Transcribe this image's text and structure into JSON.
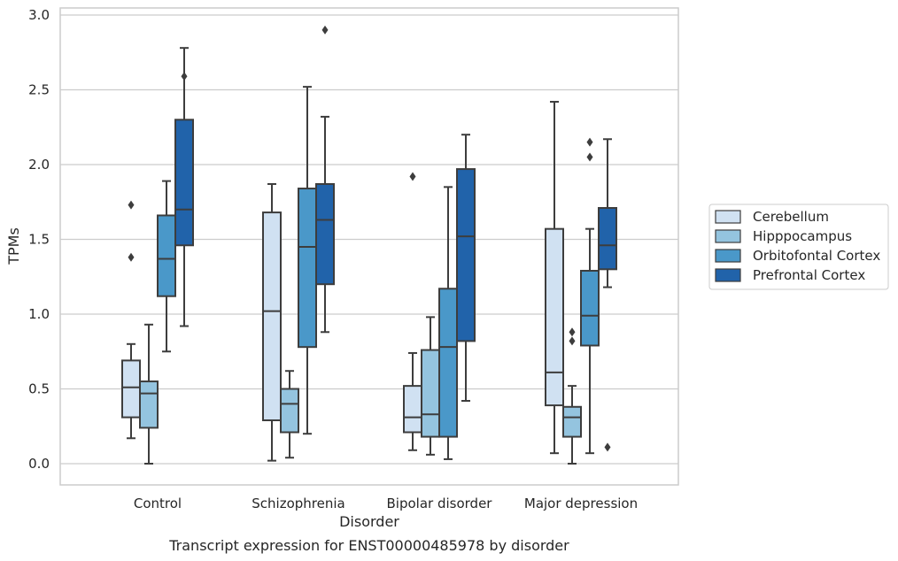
{
  "chart_data": {
    "type": "boxplot",
    "xlabel": "Disorder",
    "ylabel": "TPMs",
    "caption": "Transcript expression for ENST00000485978 by disorder",
    "ylim": [
      -0.14,
      3.05
    ],
    "yticks": [
      "0.0",
      "0.5",
      "1.0",
      "1.5",
      "2.0",
      "2.5",
      "3.0"
    ],
    "grid": "horizontal",
    "legend_position": "right",
    "categories": [
      "Control",
      "Schizophrenia",
      "Bipolar disorder",
      "Major depression"
    ],
    "series": [
      {
        "name": "Cerebellum",
        "color": "#d0e1f2",
        "boxes": [
          {
            "whislo": 0.17,
            "q1": 0.31,
            "med": 0.51,
            "q3": 0.69,
            "whishi": 0.8,
            "fliers": [
              1.38,
              1.73
            ]
          },
          {
            "whislo": 0.02,
            "q1": 0.29,
            "med": 1.02,
            "q3": 1.68,
            "whishi": 1.87,
            "fliers": []
          },
          {
            "whislo": 0.09,
            "q1": 0.21,
            "med": 0.31,
            "q3": 0.52,
            "whishi": 0.74,
            "fliers": [
              1.92
            ]
          },
          {
            "whislo": 0.07,
            "q1": 0.39,
            "med": 0.61,
            "q3": 1.57,
            "whishi": 2.42,
            "fliers": []
          }
        ]
      },
      {
        "name": "Hipppocampus",
        "color": "#94c4df",
        "boxes": [
          {
            "whislo": 0.0,
            "q1": 0.24,
            "med": 0.47,
            "q3": 0.55,
            "whishi": 0.93,
            "fliers": []
          },
          {
            "whislo": 0.04,
            "q1": 0.21,
            "med": 0.4,
            "q3": 0.5,
            "whishi": 0.62,
            "fliers": []
          },
          {
            "whislo": 0.06,
            "q1": 0.18,
            "med": 0.33,
            "q3": 0.76,
            "whishi": 0.98,
            "fliers": []
          },
          {
            "whislo": 0.0,
            "q1": 0.18,
            "med": 0.31,
            "q3": 0.38,
            "whishi": 0.52,
            "fliers": [
              0.82,
              0.88
            ]
          }
        ]
      },
      {
        "name": "Orbitofontal Cortex",
        "color": "#4a98c9",
        "boxes": [
          {
            "whislo": 0.75,
            "q1": 1.12,
            "med": 1.37,
            "q3": 1.66,
            "whishi": 1.89,
            "fliers": []
          },
          {
            "whislo": 0.2,
            "q1": 0.78,
            "med": 1.45,
            "q3": 1.84,
            "whishi": 2.52,
            "fliers": []
          },
          {
            "whislo": 0.03,
            "q1": 0.18,
            "med": 0.78,
            "q3": 1.17,
            "whishi": 1.85,
            "fliers": []
          },
          {
            "whislo": 0.07,
            "q1": 0.79,
            "med": 0.99,
            "q3": 1.29,
            "whishi": 1.57,
            "fliers": [
              2.05,
              2.15
            ]
          }
        ]
      },
      {
        "name": "Prefrontal Cortex",
        "color": "#2163aa",
        "boxes": [
          {
            "whislo": 0.92,
            "q1": 1.46,
            "med": 1.7,
            "q3": 2.3,
            "whishi": 2.78,
            "fliers": [
              2.59
            ]
          },
          {
            "whislo": 0.88,
            "q1": 1.2,
            "med": 1.63,
            "q3": 1.87,
            "whishi": 2.32,
            "fliers": [
              2.9
            ]
          },
          {
            "whislo": 0.42,
            "q1": 0.82,
            "med": 1.52,
            "q3": 1.97,
            "whishi": 2.2,
            "fliers": []
          },
          {
            "whislo": 1.18,
            "q1": 1.3,
            "med": 1.46,
            "q3": 1.71,
            "whishi": 2.17,
            "fliers": [
              0.11
            ]
          }
        ]
      }
    ]
  }
}
